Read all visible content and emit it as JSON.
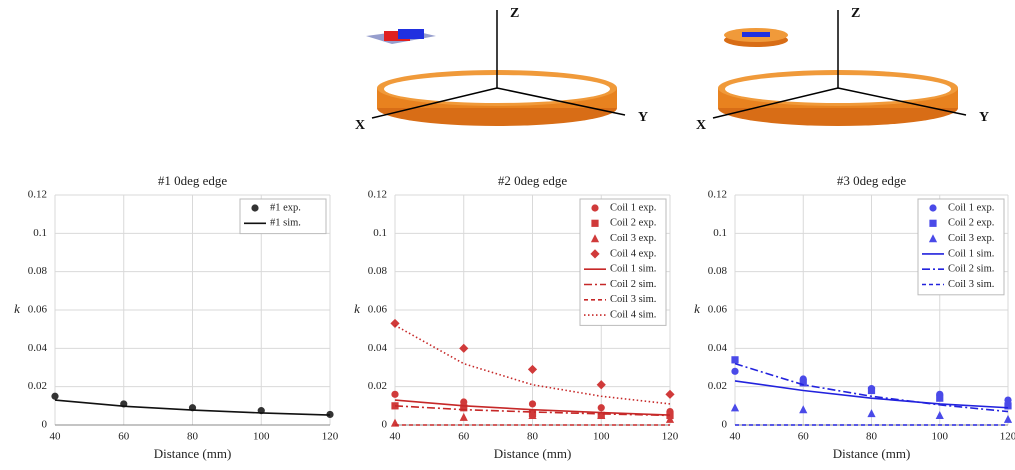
{
  "diagrams": [
    {
      "axis_labels": [
        "Z",
        "Y",
        "X"
      ]
    },
    {
      "axis_labels": [
        "Z",
        "Y",
        "X"
      ]
    }
  ],
  "chart_data": [
    {
      "type": "line",
      "title": "#1 0deg edge",
      "x_label": "Distance (mm)",
      "y_label": "k",
      "x": [
        40,
        60,
        80,
        100,
        120
      ],
      "xlim": [
        40,
        120
      ],
      "xticks": [
        40,
        60,
        80,
        100,
        120
      ],
      "ylim": [
        0,
        0.12
      ],
      "yticks": [
        0,
        0.02,
        0.04,
        0.06,
        0.08,
        0.1,
        0.12
      ],
      "grid": true,
      "legend": "upper right",
      "series": [
        {
          "name": "#1 exp.",
          "color": "#333333",
          "mode": "markers",
          "marker": "circle",
          "values": [
            0.015,
            0.011,
            0.009,
            0.0075,
            0.0055
          ]
        },
        {
          "name": "#1 sim.",
          "color": "#111111",
          "mode": "line",
          "dash": "solid",
          "values": [
            0.013,
            0.0098,
            0.0078,
            0.0063,
            0.0052
          ]
        }
      ]
    },
    {
      "type": "line",
      "title": "#2 0deg edge",
      "x_label": "Distance (mm)",
      "y_label": "k",
      "x": [
        40,
        60,
        80,
        100,
        120
      ],
      "xlim": [
        40,
        120
      ],
      "xticks": [
        40,
        60,
        80,
        100,
        120
      ],
      "ylim": [
        0,
        0.12
      ],
      "yticks": [
        0,
        0.02,
        0.04,
        0.06,
        0.08,
        0.1,
        0.12
      ],
      "grid": true,
      "legend": "upper right",
      "series": [
        {
          "name": "Coil 1 exp.",
          "color": "#d03a3a",
          "mode": "markers",
          "marker": "circle",
          "values": [
            0.016,
            0.012,
            0.011,
            0.009,
            0.007
          ]
        },
        {
          "name": "Coil 2 exp.",
          "color": "#d03a3a",
          "mode": "markers",
          "marker": "square",
          "values": [
            0.01,
            0.009,
            0.006,
            0.005,
            0.005
          ]
        },
        {
          "name": "Coil 3 exp.",
          "color": "#d03a3a",
          "mode": "markers",
          "marker": "triangle",
          "values": [
            0.001,
            0.004,
            0.005,
            0.005,
            0.003
          ]
        },
        {
          "name": "Coil 4 exp.",
          "color": "#d03a3a",
          "mode": "markers",
          "marker": "diamond",
          "values": [
            0.053,
            0.04,
            0.029,
            0.021,
            0.016
          ]
        },
        {
          "name": "Coil 1 sim.",
          "color": "#c62828",
          "mode": "line",
          "dash": "solid",
          "values": [
            0.013,
            0.01,
            0.008,
            0.0065,
            0.0052
          ]
        },
        {
          "name": "Coil 2 sim.",
          "color": "#c62828",
          "mode": "line",
          "dash": "dashdot",
          "values": [
            0.01,
            0.008,
            0.0068,
            0.0058,
            0.005
          ]
        },
        {
          "name": "Coil 3 sim.",
          "color": "#c62828",
          "mode": "line",
          "dash": "dashed",
          "values": [
            0,
            0,
            0,
            0,
            0
          ]
        },
        {
          "name": "Coil 4 sim.",
          "color": "#c62828",
          "mode": "line",
          "dash": "dotted",
          "values": [
            0.052,
            0.032,
            0.021,
            0.015,
            0.011
          ]
        }
      ]
    },
    {
      "type": "line",
      "title": "#3 0deg edge",
      "x_label": "Distance (mm)",
      "y_label": "k",
      "x": [
        40,
        60,
        80,
        100,
        120
      ],
      "xlim": [
        40,
        120
      ],
      "xticks": [
        40,
        60,
        80,
        100,
        120
      ],
      "ylim": [
        0,
        0.12
      ],
      "yticks": [
        0,
        0.02,
        0.04,
        0.06,
        0.08,
        0.1,
        0.12
      ],
      "grid": true,
      "legend": "upper right",
      "series": [
        {
          "name": "Coil 1 exp.",
          "color": "#4a4ae8",
          "mode": "markers",
          "marker": "circle",
          "values": [
            0.028,
            0.024,
            0.019,
            0.016,
            0.013
          ]
        },
        {
          "name": "Coil 2 exp.",
          "color": "#4a4ae8",
          "mode": "markers",
          "marker": "square",
          "values": [
            0.034,
            0.022,
            0.018,
            0.014,
            0.01
          ]
        },
        {
          "name": "Coil 3 exp.",
          "color": "#4a4ae8",
          "mode": "markers",
          "marker": "triangle",
          "values": [
            0.009,
            0.008,
            0.006,
            0.005,
            0.003
          ]
        },
        {
          "name": "Coil 1 sim.",
          "color": "#2222dd",
          "mode": "line",
          "dash": "solid",
          "values": [
            0.023,
            0.018,
            0.014,
            0.011,
            0.009
          ]
        },
        {
          "name": "Coil 2 sim.",
          "color": "#2222dd",
          "mode": "line",
          "dash": "dashdot",
          "values": [
            0.032,
            0.021,
            0.015,
            0.0105,
            0.007
          ]
        },
        {
          "name": "Coil 3 sim.",
          "color": "#2222dd",
          "mode": "line",
          "dash": "dashed",
          "values": [
            0,
            0,
            0,
            0,
            0
          ]
        }
      ]
    }
  ]
}
